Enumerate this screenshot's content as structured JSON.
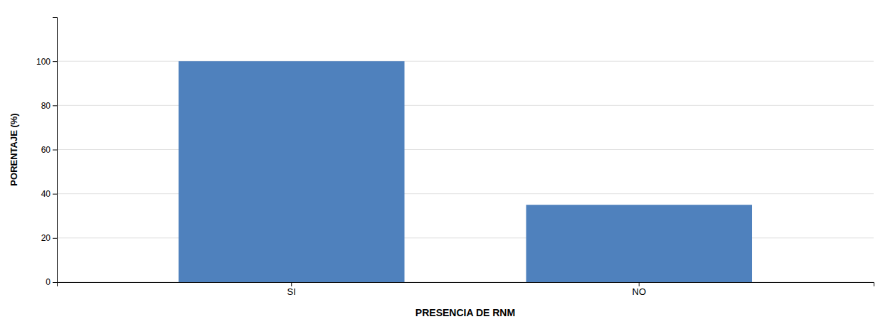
{
  "chart_data": {
    "type": "bar",
    "categories": [
      "SI",
      "NO"
    ],
    "values": [
      100,
      35
    ],
    "color": "#4F81BD",
    "xlabel": "PRESENCIA DE RNM",
    "ylabel": "PORENTAJE (%)",
    "ylim": [
      0,
      120
    ],
    "yticks": [
      0,
      20,
      40,
      60,
      80,
      100
    ],
    "grid": true
  }
}
